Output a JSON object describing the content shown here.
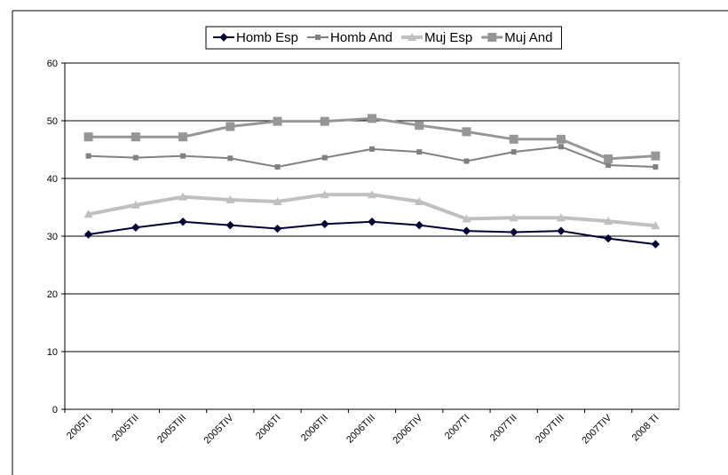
{
  "chart_data": {
    "type": "line",
    "categories": [
      "2005TI",
      "2005TII",
      "2005TIII",
      "2005TIV",
      "2006TI",
      "2006TII",
      "2006TIII",
      "2006TIV",
      "2007TI",
      "2007TII",
      "2007TIII",
      "2007TIV",
      "2008 TI"
    ],
    "series": [
      {
        "name": "Homb Esp",
        "color": "#000033",
        "marker": "diamond",
        "values": [
          30.3,
          31.5,
          32.5,
          31.9,
          31.3,
          32.1,
          32.5,
          31.9,
          30.9,
          30.7,
          30.9,
          29.6,
          28.6
        ]
      },
      {
        "name": "Homb And",
        "color": "#808080",
        "marker": "square",
        "values": [
          43.9,
          43.6,
          43.9,
          43.5,
          42.0,
          43.6,
          45.1,
          44.6,
          43.0,
          44.6,
          45.5,
          42.3,
          42.0
        ]
      },
      {
        "name": "Muj Esp",
        "color": "#c0c0c0",
        "marker": "triangle",
        "values": [
          33.8,
          35.4,
          36.8,
          36.3,
          36.0,
          37.2,
          37.2,
          36.0,
          33.0,
          33.2,
          33.2,
          32.6,
          31.8
        ]
      },
      {
        "name": "Muj And",
        "color": "#969696",
        "marker": "bigsquare",
        "values": [
          47.2,
          47.2,
          47.2,
          49.0,
          49.9,
          49.9,
          50.4,
          49.2,
          48.1,
          46.8,
          46.8,
          43.4,
          43.9
        ]
      }
    ],
    "ylim": [
      0,
      60
    ],
    "yticks": [
      0,
      10,
      20,
      30,
      40,
      50,
      60
    ],
    "grid": true,
    "legend": "top"
  }
}
